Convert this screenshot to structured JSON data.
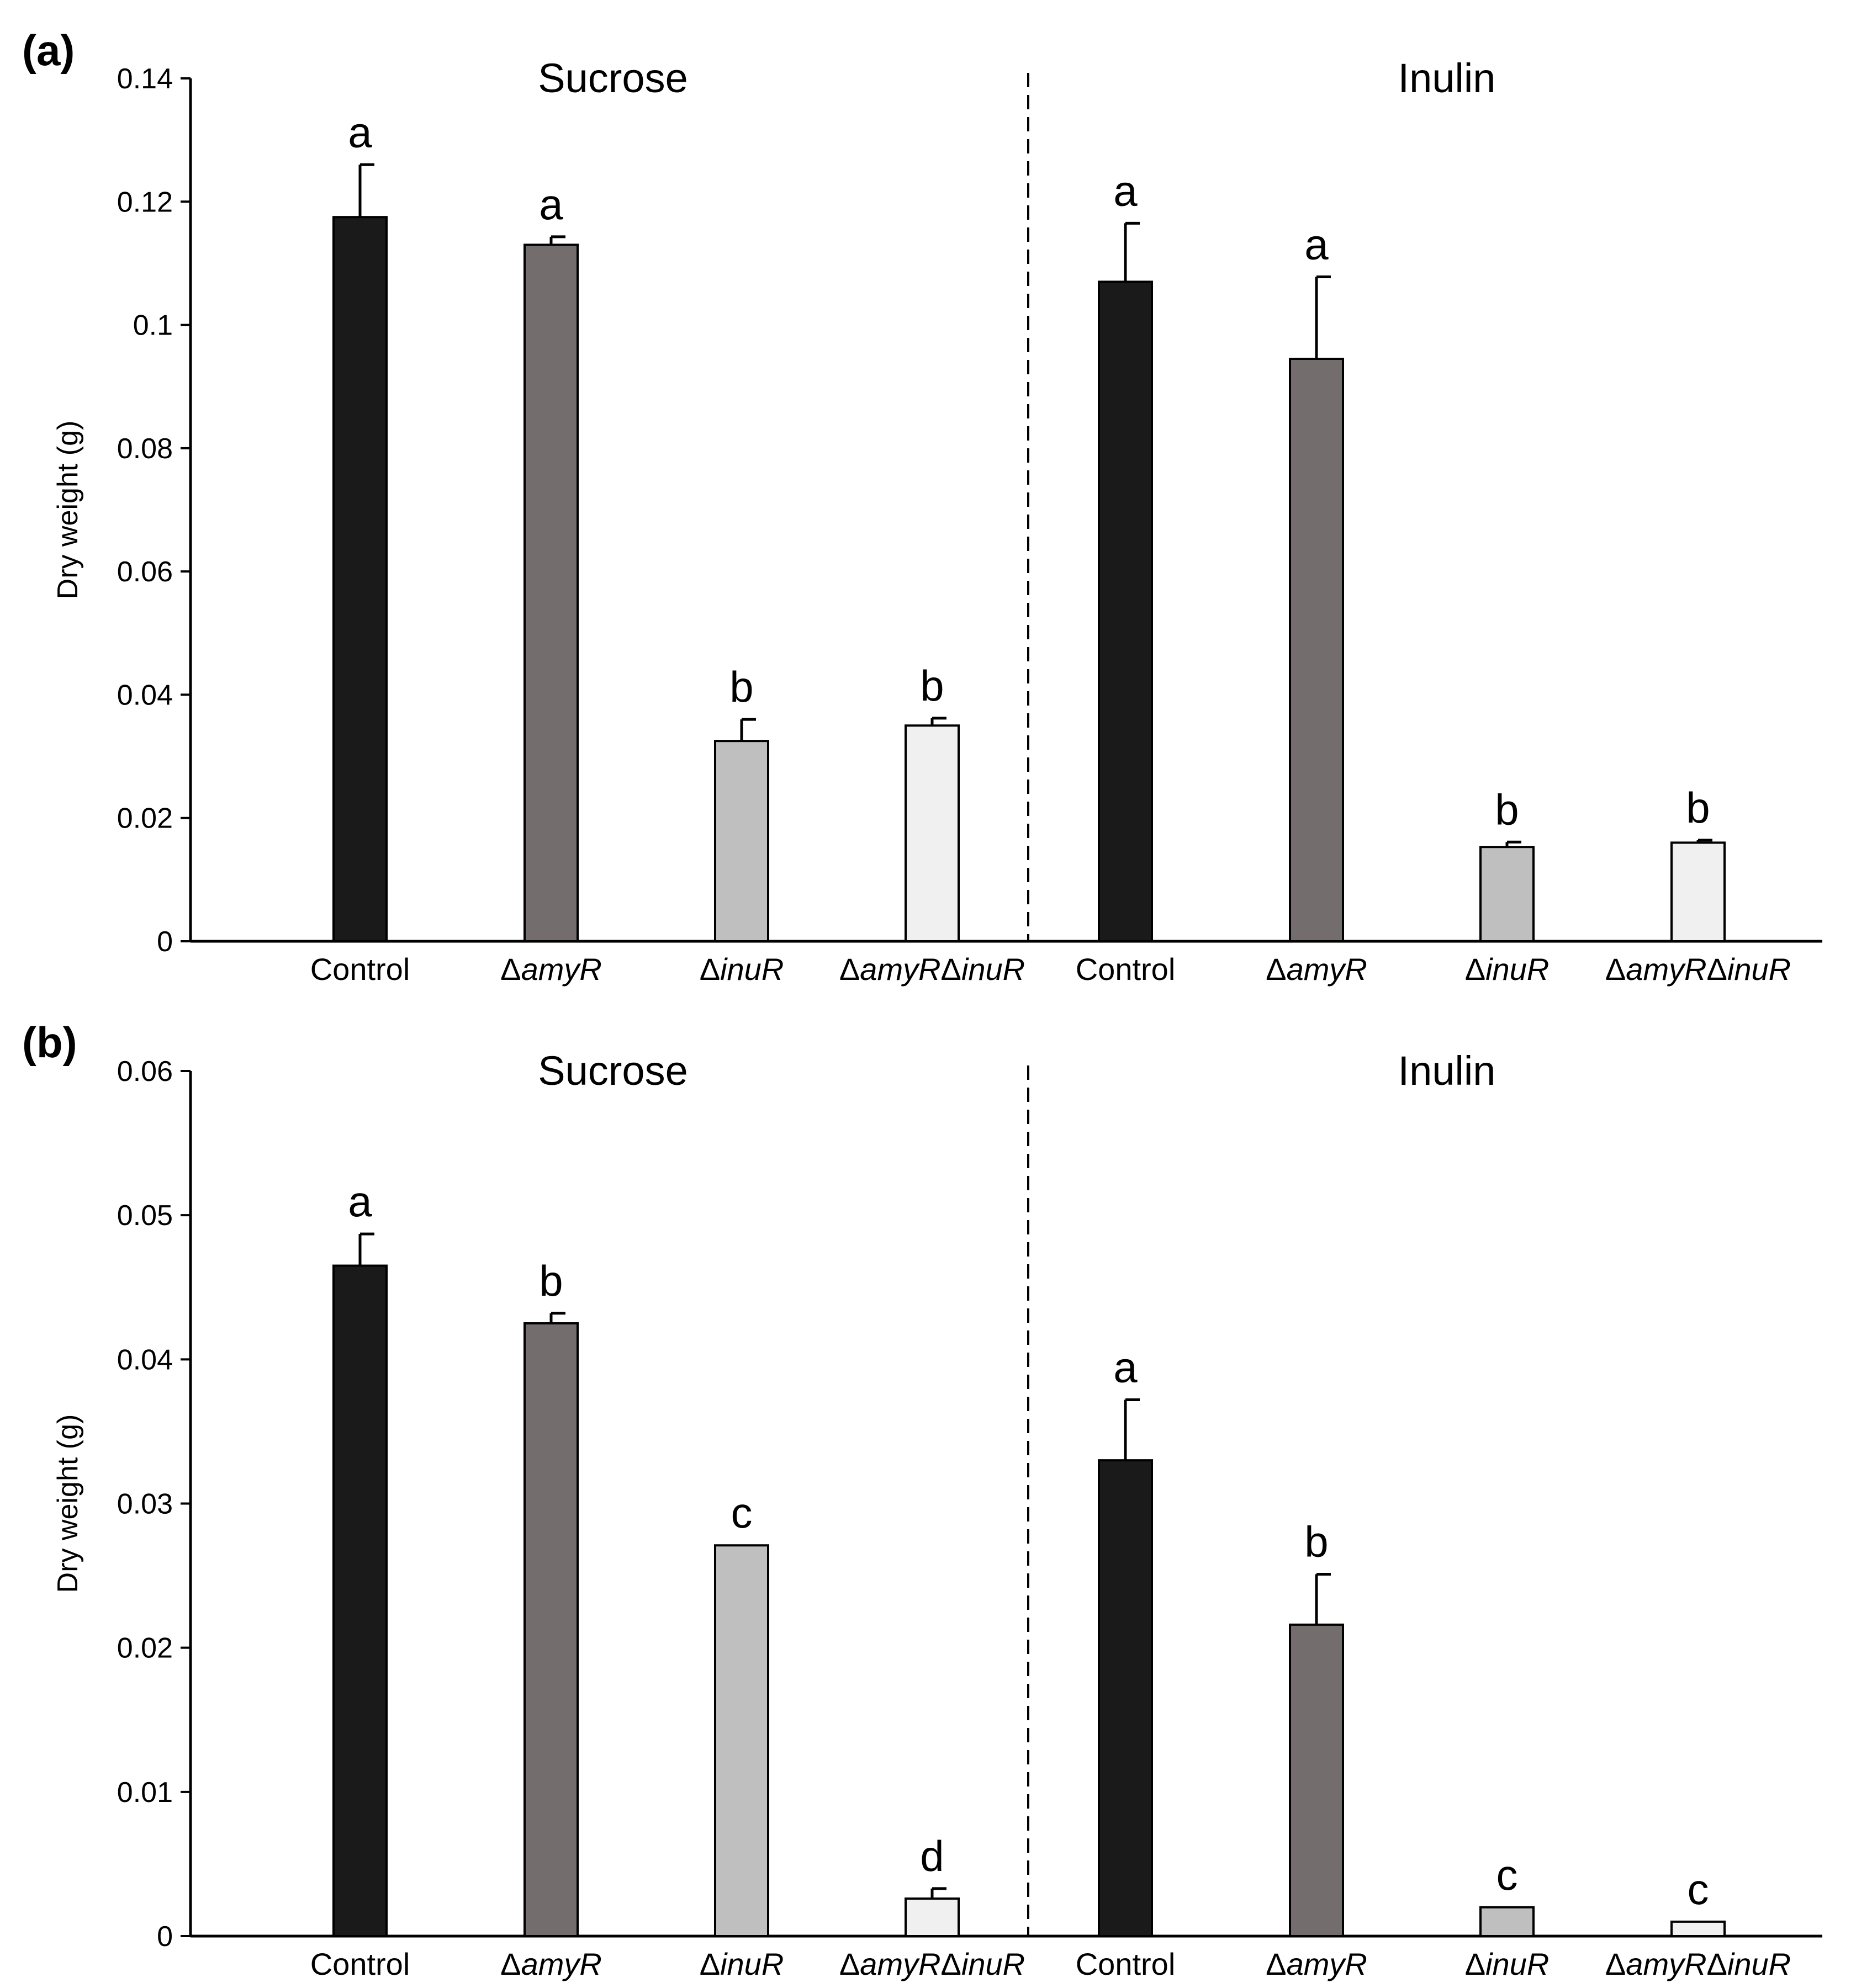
{
  "chart_data": [
    {
      "panel_label": "(a)",
      "type": "bar",
      "ylabel": "Dry weight (g)",
      "ylim": [
        0,
        0.14
      ],
      "yticks": [
        "0",
        "0.02",
        "0.04",
        "0.06",
        "0.08",
        "0.1",
        "0.12",
        "0.14"
      ],
      "ytick_values": [
        0,
        0.02,
        0.04,
        0.06,
        0.08,
        0.1,
        0.12,
        0.14
      ],
      "groups": [
        {
          "title": "Sucrose",
          "bars": [
            {
              "category": "Control",
              "italic_part": "",
              "value": 0.1175,
              "error": 0.0085,
              "letter": "a",
              "color": "#1a1a1a"
            },
            {
              "category": "Δ",
              "italic_part": "amyR",
              "value": 0.113,
              "error": 0.0013,
              "letter": "a",
              "color": "#736d6d"
            },
            {
              "category": "Δ",
              "italic_part": "inuR",
              "value": 0.0325,
              "error": 0.0035,
              "letter": "b",
              "color": "#bfbfbf"
            },
            {
              "category": "Δ",
              "italic_part": "amyRΔinuR",
              "value": 0.035,
              "error": 0.0012,
              "letter": "b",
              "color": "#f0f0f0"
            }
          ]
        },
        {
          "title": "Inulin",
          "bars": [
            {
              "category": "Control",
              "italic_part": "",
              "value": 0.107,
              "error": 0.0095,
              "letter": "a",
              "color": "#1a1a1a"
            },
            {
              "category": "Δ",
              "italic_part": "amyR",
              "value": 0.0945,
              "error": 0.0133,
              "letter": "a",
              "color": "#736d6d"
            },
            {
              "category": "Δ",
              "italic_part": "inuR",
              "value": 0.0153,
              "error": 0.0008,
              "letter": "b",
              "color": "#bfbfbf"
            },
            {
              "category": "Δ",
              "italic_part": "amyRΔinuR",
              "value": 0.016,
              "error": 0.0004,
              "letter": "b",
              "color": "#f0f0f0"
            }
          ]
        }
      ]
    },
    {
      "panel_label": "(b)",
      "type": "bar",
      "ylabel": "Dry weight (g)",
      "ylim": [
        0,
        0.06
      ],
      "yticks": [
        "0",
        "0.01",
        "0.02",
        "0.03",
        "0.04",
        "0.05",
        "0.06"
      ],
      "ytick_values": [
        0,
        0.01,
        0.02,
        0.03,
        0.04,
        0.05,
        0.06
      ],
      "groups": [
        {
          "title": "Sucrose",
          "bars": [
            {
              "category": "Control",
              "italic_part": "",
              "value": 0.0465,
              "error": 0.0022,
              "letter": "a",
              "color": "#1a1a1a"
            },
            {
              "category": "Δ",
              "italic_part": "amyR",
              "value": 0.0425,
              "error": 0.0007,
              "letter": "b",
              "color": "#736d6d"
            },
            {
              "category": "Δ",
              "italic_part": "inuR",
              "value": 0.0271,
              "error": 0,
              "letter": "c",
              "color": "#bfbfbf"
            },
            {
              "category": "Δ",
              "italic_part": "amyRΔinuR",
              "value": 0.0026,
              "error": 0.0007,
              "letter": "d",
              "color": "#f0f0f0"
            }
          ]
        },
        {
          "title": "Inulin",
          "bars": [
            {
              "category": "Control",
              "italic_part": "",
              "value": 0.033,
              "error": 0.0042,
              "letter": "a",
              "color": "#1a1a1a"
            },
            {
              "category": "Δ",
              "italic_part": "amyR",
              "value": 0.0216,
              "error": 0.0035,
              "letter": "b",
              "color": "#736d6d"
            },
            {
              "category": "Δ",
              "italic_part": "inuR",
              "value": 0.002,
              "error": 0,
              "letter": "c",
              "color": "#bfbfbf"
            },
            {
              "category": "Δ",
              "italic_part": "amyRΔinuR",
              "value": 0.001,
              "error": 0,
              "letter": "c",
              "color": "#f0f0f0"
            }
          ]
        }
      ]
    }
  ]
}
